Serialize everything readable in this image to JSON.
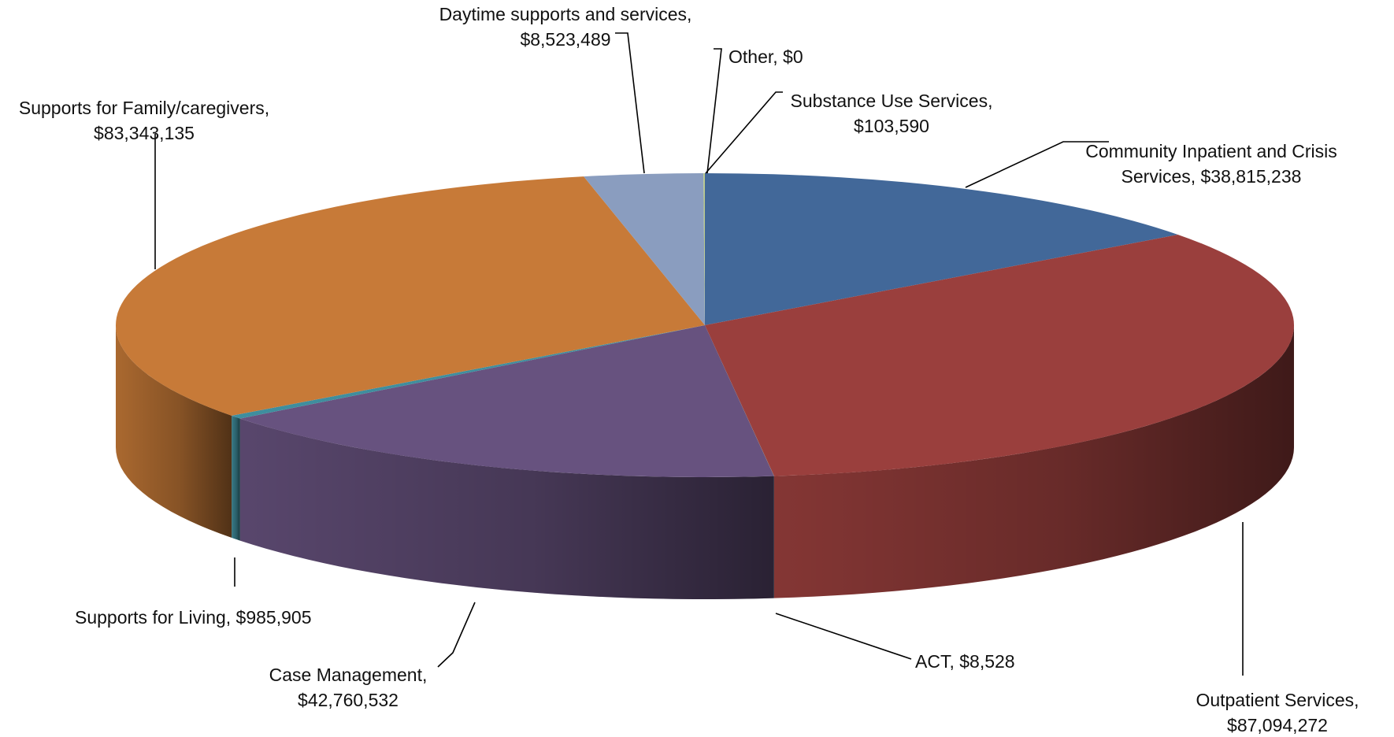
{
  "chart_data": {
    "type": "pie",
    "title": "",
    "legend": "none",
    "slices": [
      {
        "name": "Community Inpatient and Crisis Services",
        "value": 38815238,
        "label_line1": "Community Inpatient and Crisis",
        "label_line2": "Services, $38,815,238",
        "color": "#426899"
      },
      {
        "name": "Outpatient Services",
        "value": 87094272,
        "label_line1": "Outpatient Services,",
        "label_line2": "$87,094,272",
        "color": "#9a3f3d"
      },
      {
        "name": "ACT",
        "value": 8528,
        "label_line1": "ACT, $8,528",
        "label_line2": "",
        "color": "#8bbd4e"
      },
      {
        "name": "Case Management",
        "value": 42760532,
        "label_line1": "Case Management,",
        "label_line2": "$42,760,532",
        "color": "#67527f"
      },
      {
        "name": "Supports for Living",
        "value": 985905,
        "label_line1": "Supports for Living, $985,905",
        "label_line2": "",
        "color": "#3f8e9e"
      },
      {
        "name": "Supports for Family/caregivers",
        "value": 83343135,
        "label_line1": "Supports for Family/caregivers,",
        "label_line2": "$83,343,135",
        "color": "#c77a38"
      },
      {
        "name": "Daytime supports and services",
        "value": 8523489,
        "label_line1": "Daytime supports and services,",
        "label_line2": "$8,523,489",
        "color": "#8a9dbf"
      },
      {
        "name": "Other",
        "value": 0,
        "label_line1": "Other, $0",
        "label_line2": "",
        "color": "#a0a0a0"
      },
      {
        "name": "Substance Use Services",
        "value": 103590,
        "label_line1": "Substance Use Services,",
        "label_line2": "$103,590",
        "color": "#b9c98a"
      }
    ]
  }
}
